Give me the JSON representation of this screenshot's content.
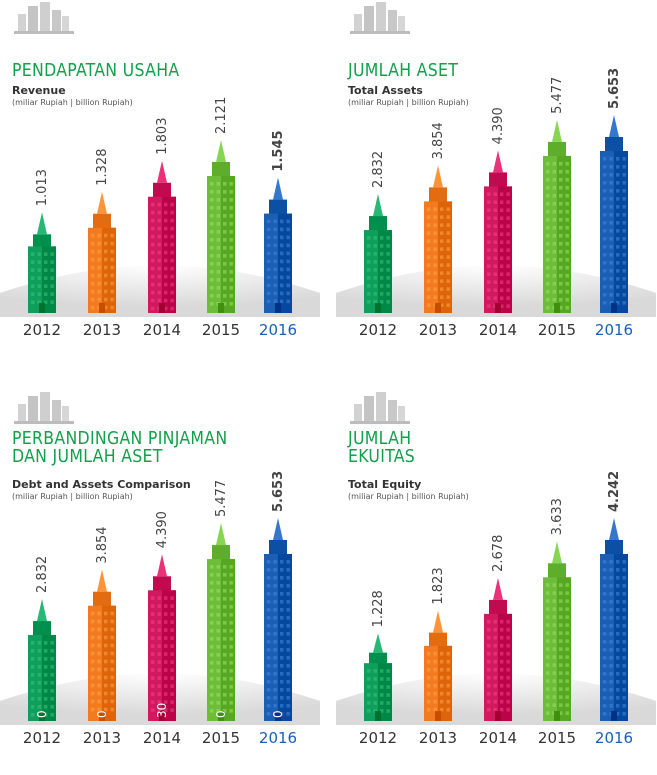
{
  "colors": {
    "title": "#12a04a",
    "years": [
      "#0f9e5c",
      "#f47a20",
      "#d0195f",
      "#6dbd3b",
      "#1a5fb4"
    ],
    "year_label_default": "#333333",
    "year_label_highlight": "#1a5fb4"
  },
  "charts": [
    {
      "title": "PENDAPATAN USAHA",
      "subtitle": "Revenue",
      "unit": "(miliar Rupiah | billion Rupiah)",
      "chart_data": {
        "type": "bar",
        "categories": [
          "2012",
          "2013",
          "2014",
          "2015",
          "2016"
        ],
        "values": [
          1013,
          1328,
          1803,
          2121,
          1545
        ],
        "value_labels": [
          "1.013",
          "1.328",
          "1.803",
          "2.121",
          "1.545"
        ],
        "ylim": [
          0,
          2121
        ]
      }
    },
    {
      "title": "JUMLAH ASET",
      "subtitle": "Total Assets",
      "unit": "(miliar Rupiah | billion Rupiah)",
      "chart_data": {
        "type": "bar",
        "categories": [
          "2012",
          "2013",
          "2014",
          "2015",
          "2016"
        ],
        "values": [
          2832,
          3854,
          4390,
          5477,
          5653
        ],
        "value_labels": [
          "2.832",
          "3.854",
          "4.390",
          "5.477",
          "5.653"
        ],
        "ylim": [
          0,
          5653
        ]
      }
    },
    {
      "title": "PERBANDINGAN PINJAMAN\nDAN JUMLAH ASET",
      "subtitle": "Debt and Assets Comparison",
      "unit": "(miliar Rupiah | billion Rupiah)",
      "chart_data": {
        "type": "bar",
        "categories": [
          "2012",
          "2013",
          "2014",
          "2015",
          "2016"
        ],
        "values": [
          2832,
          3854,
          4390,
          5477,
          5653
        ],
        "value_labels": [
          "2.832",
          "3.854",
          "4.390",
          "5.477",
          "5.653"
        ],
        "inner_values": [
          0,
          0,
          30,
          0,
          0
        ],
        "inner_labels": [
          "0",
          "0",
          "30",
          "0",
          "0"
        ],
        "ylim": [
          0,
          5653
        ]
      }
    },
    {
      "title": "JUMLAH\nEKUITAS",
      "subtitle": "Total Equity",
      "unit": "(miliar Rupiah | billion Rupiah)",
      "chart_data": {
        "type": "bar",
        "categories": [
          "2012",
          "2013",
          "2014",
          "2015",
          "2016"
        ],
        "values": [
          1228,
          1823,
          2678,
          3633,
          4242
        ],
        "value_labels": [
          "1.228",
          "1.823",
          "2.678",
          "3.633",
          "4.242"
        ],
        "ylim": [
          0,
          4242
        ]
      }
    }
  ]
}
